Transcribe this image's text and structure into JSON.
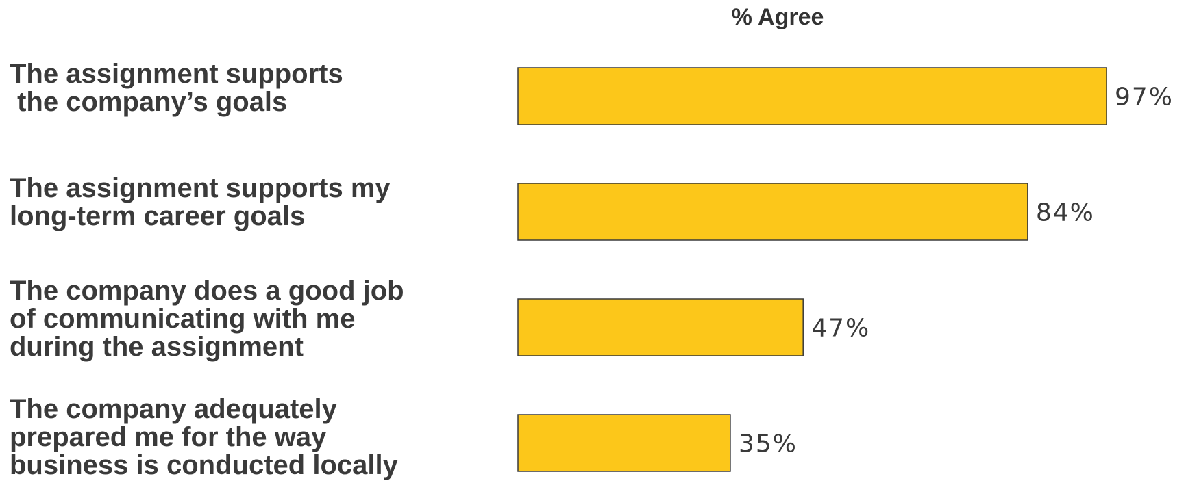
{
  "chart_data": {
    "type": "bar",
    "orientation": "horizontal",
    "title": "% Agree",
    "categories": [
      "The assignment supports\n the company’s goals",
      "The assignment supports my\nlong-term career goals",
      "The company does a good job\nof communicating with me\nduring the assignment",
      "The company adequately\nprepared me for the way\nbusiness is conducted locally"
    ],
    "values": [
      97,
      84,
      47,
      35
    ],
    "value_labels": [
      "97%",
      "84%",
      "47%",
      "35%"
    ],
    "xlim": [
      0,
      100
    ],
    "grid": false,
    "legend": "none",
    "bar_color": "#FCC71A",
    "bar_edge_color": "#3a3a3a"
  }
}
